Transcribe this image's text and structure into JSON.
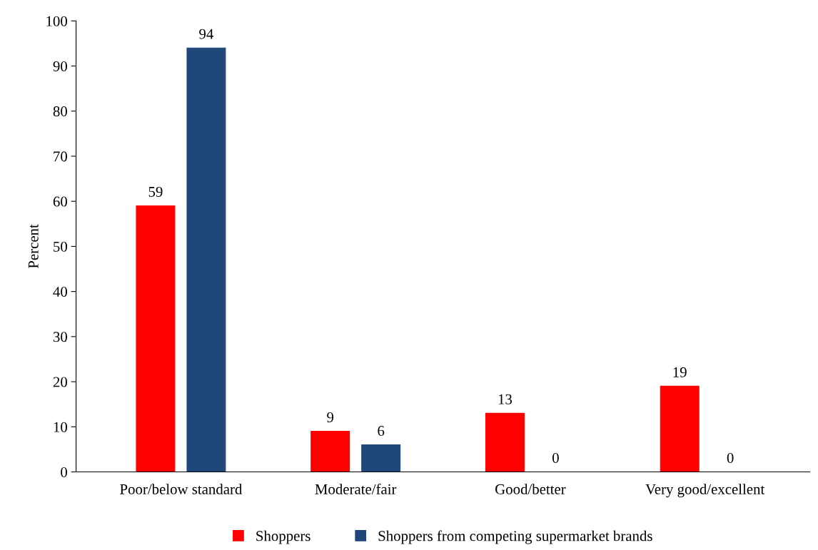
{
  "chart_data": {
    "type": "bar",
    "ylabel": "Percent",
    "categories": [
      "Poor/below standard",
      "Moderate/fair",
      "Good/better",
      "Very good/excellent"
    ],
    "series": [
      {
        "name": "Shoppers",
        "color": "#ff0000",
        "values": [
          59,
          9,
          13,
          19
        ]
      },
      {
        "name": "Shoppers from competing supermarket brands",
        "color": "#1f477a",
        "values": [
          94,
          6,
          0,
          0
        ]
      }
    ],
    "ylim": [
      0,
      100
    ],
    "yticks": [
      0,
      10,
      20,
      30,
      40,
      50,
      60,
      70,
      80,
      90,
      100
    ],
    "data_labels": true,
    "legend": "bottom",
    "grid": false
  }
}
